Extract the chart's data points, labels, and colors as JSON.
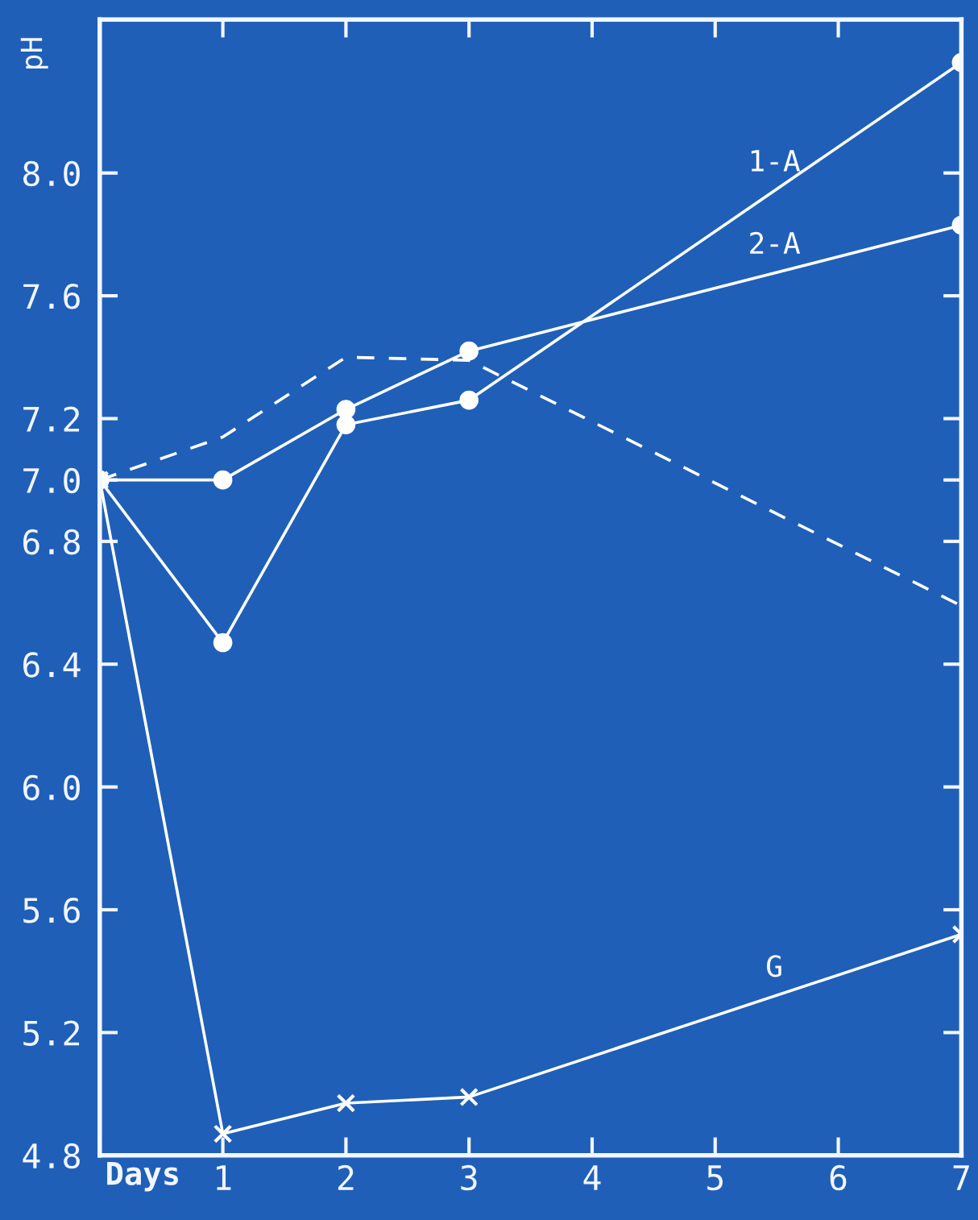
{
  "chart_data": {
    "type": "line",
    "xlabel": "Days",
    "ylabel": "pH",
    "x": [
      0,
      1,
      2,
      3,
      7
    ],
    "series": [
      {
        "name": "1-A",
        "color": "#ffffff",
        "marker": "circle",
        "line_style": "solid",
        "values": [
          7.0,
          6.47,
          7.18,
          7.26,
          8.36
        ]
      },
      {
        "name": "2-A",
        "color": "#ffffff",
        "marker": "circle",
        "line_style": "solid",
        "values": [
          7.0,
          7.0,
          7.23,
          7.42,
          7.83
        ]
      },
      {
        "color": "#ffffff",
        "marker": "none",
        "line_style": "dashed",
        "values": [
          7.0,
          7.14,
          7.4,
          7.39,
          6.59
        ]
      },
      {
        "name": "G",
        "color": "#ffffff",
        "marker": "cross",
        "line_style": "solid",
        "values": [
          7.0,
          4.87,
          4.97,
          4.99,
          5.52
        ]
      }
    ],
    "xlim": [
      0,
      7
    ],
    "xticks": [
      {
        "value": 0,
        "label": null
      },
      1,
      2,
      3,
      4,
      5,
      6,
      7
    ],
    "ylim": [
      4.8,
      8.5
    ],
    "yticks": [
      {
        "value": 4.8,
        "label": "4.8"
      },
      {
        "value": 5.2,
        "label": "5.2"
      },
      {
        "value": 5.6,
        "label": "5.6"
      },
      {
        "value": 6.0,
        "label": "6.0"
      },
      {
        "value": 6.4,
        "label": "6.4"
      },
      {
        "value": 6.8,
        "label": "6.8"
      },
      {
        "value": 7.0,
        "label": "7.0"
      },
      {
        "value": 7.2,
        "label": "7.2"
      },
      {
        "value": 7.6,
        "label": "7.6"
      },
      {
        "value": 8.0,
        "label": "8.0"
      }
    ],
    "grid": false,
    "legend": false
  }
}
